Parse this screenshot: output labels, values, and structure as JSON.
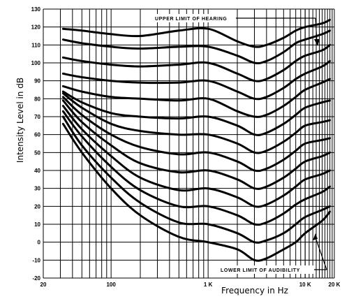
{
  "chart_data": {
    "type": "line",
    "title": "",
    "xlabel": "Frequency in Hz",
    "ylabel": "Intensity Level in dB",
    "xscale": "log",
    "xlim": [
      20,
      20000
    ],
    "ylim": [
      -20,
      130
    ],
    "grid": true,
    "x_ticks": [
      {
        "value": 20,
        "label": "20"
      },
      {
        "value": 100,
        "label": "100"
      },
      {
        "value": 1000,
        "label": "1 K"
      },
      {
        "value": 10000,
        "label": "10 K"
      },
      {
        "value": 20000,
        "label": "20 K"
      }
    ],
    "y_ticks": [
      130,
      120,
      110,
      100,
      90,
      80,
      70,
      60,
      50,
      40,
      30,
      20,
      10,
      0,
      -10,
      -20
    ],
    "y_tick_labels": [
      "130",
      "120",
      "110",
      "100",
      "90",
      "80",
      "70",
      "60",
      "50",
      "40",
      "30",
      "20",
      "10",
      "0",
      "-10",
      "-20"
    ],
    "annotations": [
      {
        "text": "UPPER LIMIT OF HEARING"
      },
      {
        "text": "LOWER LIMIT OF AUDIBILITY"
      }
    ],
    "x": [
      32,
      50,
      100,
      200,
      500,
      1000,
      2000,
      3000,
      4000,
      6000,
      8000,
      10000,
      15000,
      18000
    ],
    "series": [
      {
        "values": [
          119,
          118,
          116,
          115,
          118,
          119,
          112,
          109,
          110,
          114,
          118,
          120,
          122,
          124
        ]
      },
      {
        "values": [
          113,
          111,
          109,
          108,
          109,
          109,
          104,
          100,
          101,
          106,
          111,
          113,
          116,
          118
        ]
      },
      {
        "values": [
          103,
          101,
          99,
          98,
          99,
          100,
          94,
          90,
          91,
          96,
          101,
          104,
          107,
          110
        ]
      },
      {
        "values": [
          94,
          92,
          90,
          89,
          89,
          90,
          84,
          80,
          81,
          86,
          91,
          94,
          98,
          101
        ]
      },
      {
        "values": [
          87,
          84,
          81,
          80,
          79,
          80,
          73,
          70,
          71,
          76,
          81,
          85,
          89,
          91
        ]
      },
      {
        "values": [
          84,
          78,
          72,
          70,
          69,
          70,
          65,
          60,
          61,
          66,
          71,
          75,
          78,
          79
        ]
      },
      {
        "values": [
          83,
          75,
          66,
          62,
          60,
          60,
          55,
          50,
          51,
          56,
          61,
          65,
          67,
          68
        ]
      },
      {
        "values": [
          81,
          71,
          60,
          53,
          49,
          50,
          45,
          40,
          41,
          46,
          51,
          55,
          57,
          58
        ]
      },
      {
        "values": [
          79,
          67,
          54,
          44,
          39,
          40,
          35,
          30,
          31,
          36,
          41,
          45,
          48,
          50
        ]
      },
      {
        "values": [
          76,
          63,
          48,
          36,
          29,
          30,
          25,
          20,
          21,
          26,
          31,
          35,
          38,
          40
        ]
      },
      {
        "values": [
          73,
          59,
          42,
          29,
          20,
          20,
          15,
          10,
          11,
          16,
          21,
          24,
          28,
          31
        ]
      },
      {
        "values": [
          70,
          54,
          36,
          22,
          11,
          10,
          5,
          0,
          1,
          5,
          10,
          14,
          18,
          20
        ]
      },
      {
        "values": [
          66,
          50,
          30,
          15,
          3,
          0,
          -4,
          -10,
          -9,
          -4,
          0,
          5,
          12,
          17
        ]
      }
    ]
  }
}
